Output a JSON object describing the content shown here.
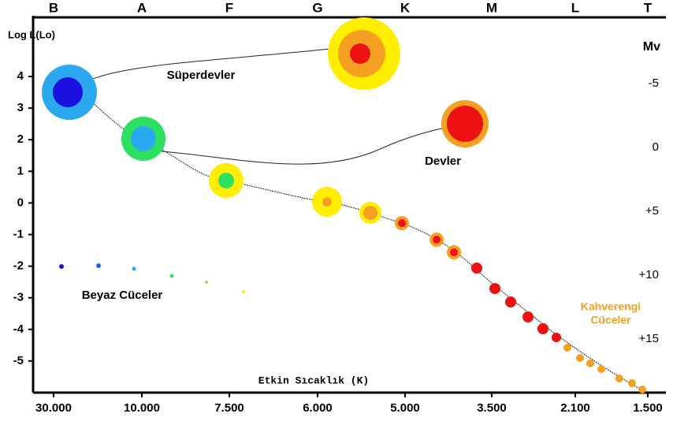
{
  "diagram": {
    "spectral_classes": [
      "B",
      "A",
      "F",
      "G",
      "K",
      "M",
      "L",
      "T"
    ],
    "left_axis": {
      "label": "Log L(Lo)",
      "ticks": [
        "4",
        "3",
        "2",
        "1",
        "0",
        "-1",
        "-2",
        "-3",
        "-4",
        "-5"
      ]
    },
    "right_axis": {
      "label": "Mv",
      "ticks": [
        "-5",
        "0",
        "+5",
        "+10",
        "+15"
      ]
    },
    "bottom_axis": {
      "label": "Etkin Sıcaklık (K)",
      "ticks": [
        "30.000",
        "10.000",
        "7.500",
        "6.000",
        "5.000",
        "3.500",
        "2.100",
        "1.500"
      ]
    },
    "regions": {
      "supergiants": "Süperdevler",
      "giants": "Devler",
      "white_dwarfs": "Beyaz Cüceler",
      "brown_dwarfs": [
        "Kahverengi",
        "Cüceler"
      ]
    }
  }
}
